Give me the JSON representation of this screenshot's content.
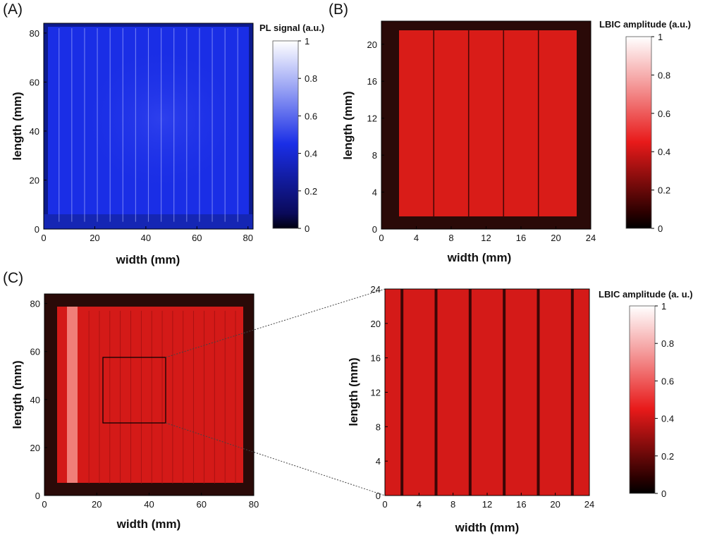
{
  "colors": {
    "pl_low": "#000010",
    "pl_mid": "#1a2ee6",
    "pl_high": "#ffffff",
    "lbic_low": "#000000",
    "lbic_mid": "#e81a1a",
    "lbic_high": "#ffffff",
    "frame_dark": "#2a0a08"
  },
  "chart_data": [
    {
      "type": "heatmap",
      "panel": "(A)",
      "xlabel": "width (mm)",
      "ylabel": "length (mm)",
      "xlim": [
        0,
        82
      ],
      "ylim": [
        0,
        84
      ],
      "xticks": [
        0,
        20,
        40,
        60,
        80
      ],
      "yticks": [
        0,
        20,
        40,
        60,
        80
      ],
      "colorbar": {
        "title": "PL signal (a.u.)",
        "ticks": [
          0,
          0.2,
          0.4,
          0.6,
          0.8,
          1
        ],
        "tick_labels": [
          "0",
          "0.2",
          "0.4",
          "0.6",
          "0.8",
          "1"
        ]
      },
      "active_area": {
        "x": [
          2,
          81
        ],
        "y": [
          3,
          82
        ]
      },
      "typical_value": 0.35,
      "cell_boundaries_x": [
        6,
        11,
        16,
        21,
        26,
        31,
        36,
        41,
        46,
        51,
        56,
        61,
        66,
        71,
        76
      ]
    },
    {
      "type": "heatmap",
      "panel": "(B)",
      "xlabel": "width (mm)",
      "ylabel": "length (mm)",
      "xlim": [
        0,
        24
      ],
      "ylim": [
        0,
        22.5
      ],
      "xticks": [
        0,
        4,
        8,
        12,
        16,
        20,
        24
      ],
      "yticks": [
        0,
        4,
        8,
        12,
        16,
        20
      ],
      "colorbar": {
        "title": "LBIC amplitude (a.u.)",
        "ticks": [
          0,
          0.2,
          0.4,
          0.6,
          0.8,
          1
        ],
        "tick_labels": [
          "0",
          "0.2",
          "0.4",
          "0.6",
          "0.8",
          "1"
        ]
      },
      "active_area": {
        "x": [
          2,
          22
        ],
        "y": [
          1.3,
          21.5
        ]
      },
      "typical_value": 0.5,
      "cell_boundaries_x": [
        6,
        10,
        14,
        18
      ]
    },
    {
      "type": "heatmap",
      "panel": "(C)",
      "xlabel": "width (mm)",
      "ylabel": "length (mm)",
      "xlim": [
        0,
        80
      ],
      "ylim": [
        0,
        84
      ],
      "xticks": [
        0,
        20,
        40,
        60,
        80
      ],
      "yticks": [
        0,
        20,
        40,
        60,
        80
      ],
      "active_area": {
        "x": [
          5,
          77
        ],
        "y": [
          5,
          77
        ]
      },
      "typical_value": 0.5,
      "bright_stripe_x": [
        9,
        13
      ],
      "zoom_box": {
        "x": [
          23,
          48
        ],
        "y": [
          30,
          57
        ]
      },
      "cell_boundaries_x": [
        17,
        21,
        25,
        29,
        33,
        37,
        41,
        45,
        49,
        53,
        57,
        61,
        65,
        69,
        73
      ]
    },
    {
      "type": "heatmap",
      "panel": "(C) zoom",
      "xlabel": "width (mm)",
      "ylabel": "length (mm)",
      "xlim": [
        0,
        24
      ],
      "ylim": [
        0,
        24
      ],
      "xticks": [
        0,
        4,
        8,
        12,
        16,
        20,
        24
      ],
      "yticks": [
        0,
        4,
        8,
        12,
        16,
        20,
        24
      ],
      "colorbar": {
        "title": "LBIC amplitude (a. u.)",
        "ticks": [
          0,
          0.2,
          0.4,
          0.6,
          0.8,
          1
        ],
        "tick_labels": [
          "0",
          "0.2",
          "0.4",
          "0.6",
          "0.8",
          "1"
        ]
      },
      "typical_value": 0.5,
      "cell_boundaries_x": [
        2,
        6,
        10,
        14,
        18,
        22
      ]
    }
  ]
}
